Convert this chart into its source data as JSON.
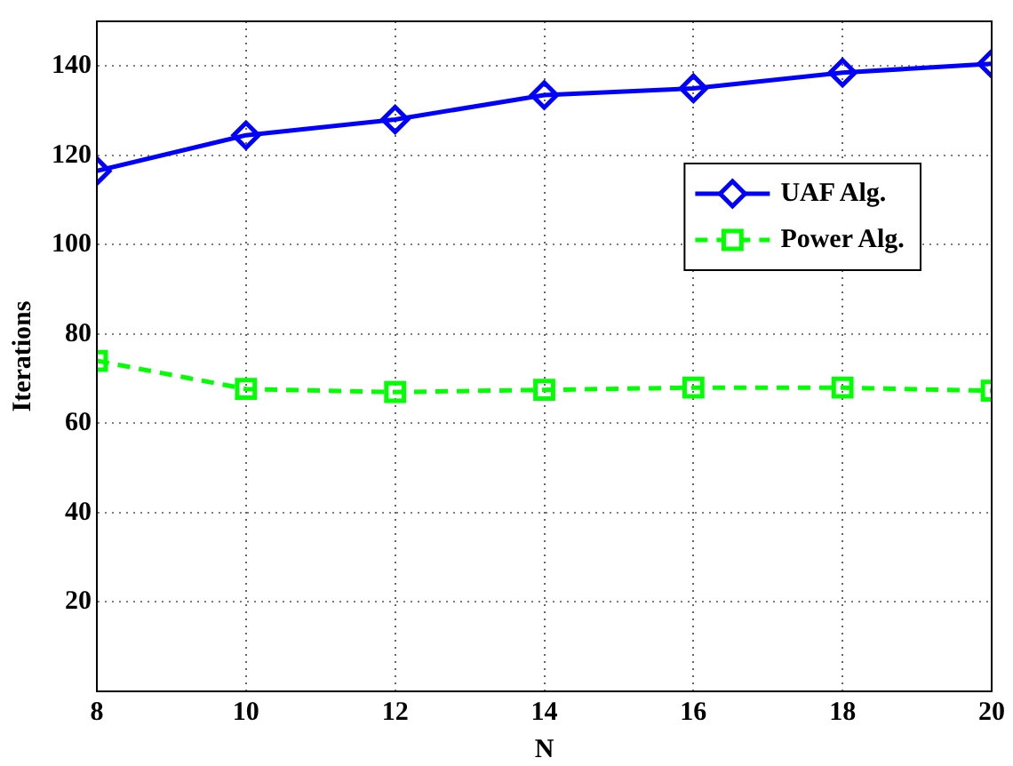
{
  "chart_data": {
    "type": "line",
    "xlabel": "N",
    "ylabel": "Iterations",
    "x": [
      8,
      10,
      12,
      14,
      16,
      18,
      20
    ],
    "xlim": [
      8,
      20
    ],
    "xticks": [
      8,
      10,
      12,
      14,
      16,
      18,
      20
    ],
    "ylim": [
      0,
      150
    ],
    "yticks": [
      20,
      40,
      60,
      80,
      100,
      120,
      140
    ],
    "grid": true,
    "legend": "top right",
    "series": [
      {
        "name": "UAF Alg.",
        "color": "#0000ff",
        "marker": "diamond",
        "line_style": "solid",
        "values": [
          116.5,
          124.5,
          128,
          133.5,
          135,
          138.5,
          140.5
        ]
      },
      {
        "name": "Power Alg.",
        "color": "#00ff00",
        "marker": "square",
        "line_style": "dashed",
        "values": [
          74,
          67.7,
          67,
          67.5,
          68,
          68,
          67.3
        ]
      }
    ]
  }
}
